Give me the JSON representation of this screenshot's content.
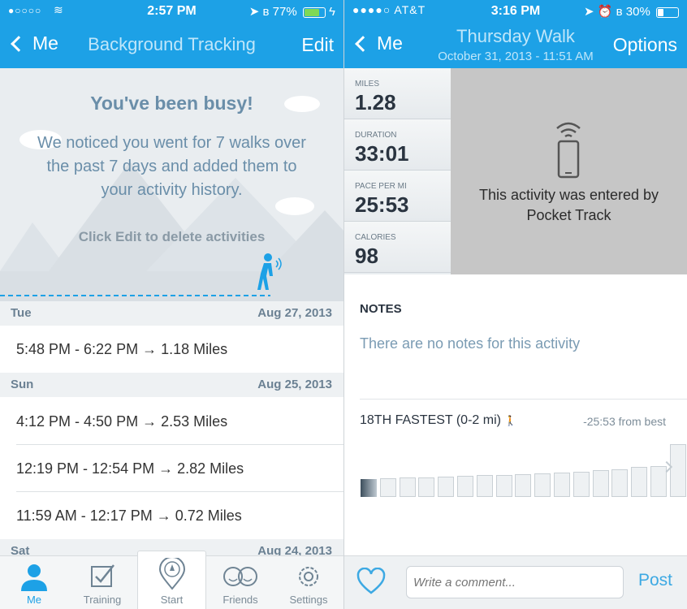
{
  "left": {
    "status": {
      "carrier_dots": "●○○○○",
      "time": "2:57 PM",
      "battery_pct": "77%",
      "battery_level": 0.77
    },
    "nav": {
      "back_label": "Me",
      "title": "Background Tracking",
      "right_label": "Edit"
    },
    "hero": {
      "headline": "You've been busy!",
      "message": "We noticed you went for 7 walks over the past 7 days and added them to your activity history.",
      "hint": "Click Edit to delete activities"
    },
    "sections": [
      {
        "day": "Tue",
        "date": "Aug 27, 2013",
        "rows": [
          "5:48 PM - 6:22 PM → 1.18 Miles"
        ]
      },
      {
        "day": "Sun",
        "date": "Aug 25, 2013",
        "rows": [
          "4:12 PM - 4:50 PM → 2.53 Miles",
          "12:19 PM - 12:54 PM → 2.82 Miles",
          "11:59 AM - 12:17 PM → 0.72 Miles"
        ]
      },
      {
        "day": "Sat",
        "date": "Aug 24, 2013",
        "rows": []
      }
    ],
    "tabs": [
      {
        "label": "Me",
        "icon": "person-icon"
      },
      {
        "label": "Training",
        "icon": "checkbox-icon"
      },
      {
        "label": "Start",
        "icon": "compass-pin-icon"
      },
      {
        "label": "Friends",
        "icon": "friends-icon"
      },
      {
        "label": "Settings",
        "icon": "gear-icon"
      }
    ],
    "colors": {
      "accent": "#1da1e6"
    }
  },
  "right": {
    "status": {
      "carrier": "●●●●○ AT&T",
      "time": "3:16 PM",
      "battery_pct": "30%",
      "battery_level": 0.3
    },
    "nav": {
      "back_label": "Me",
      "title": "Thursday Walk",
      "subtitle": "October 31, 2013 - 11:51 AM",
      "right_label": "Options"
    },
    "stats": [
      {
        "key": "MILES",
        "value": "1.28"
      },
      {
        "key": "DURATION",
        "value": "33:01"
      },
      {
        "key": "PACE PER MI",
        "value": "25:53"
      },
      {
        "key": "CALORIES",
        "value": "98"
      }
    ],
    "entered_text": "This activity was entered by Pocket Track",
    "notes": {
      "heading": "NOTES",
      "text": "There are no notes for this activity"
    },
    "ranking": {
      "title": "18TH FASTEST (0-2 mi)",
      "vs_best": "-25:53 from best",
      "bar_levels": [
        0.3,
        0.31,
        0.32,
        0.33,
        0.34,
        0.35,
        0.36,
        0.37,
        0.38,
        0.39,
        0.4,
        0.42,
        0.44,
        0.46,
        0.5,
        0.52,
        0.88
      ]
    },
    "comment": {
      "placeholder": "Write a comment...",
      "post_label": "Post"
    }
  }
}
